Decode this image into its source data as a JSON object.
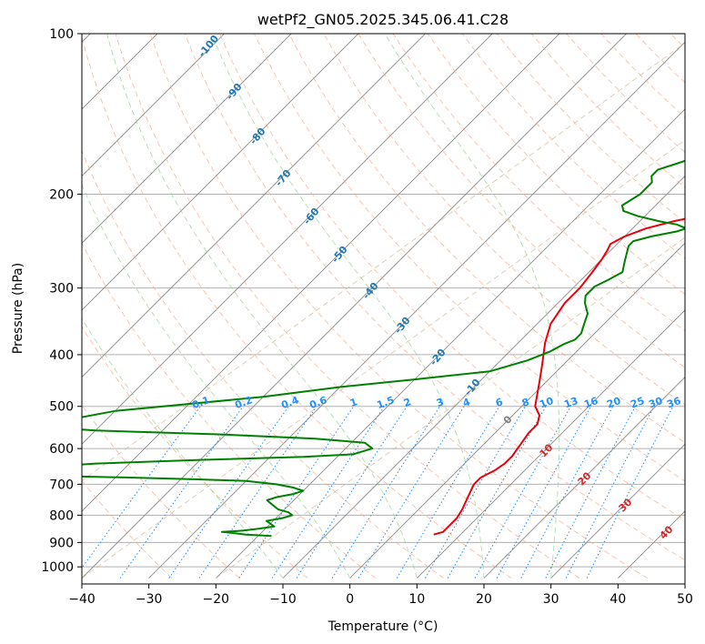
{
  "chart_data": {
    "type": "line",
    "title": "wetPf2_GN05.2025.345.06.41.C28",
    "xlabel": "Temperature (°C)",
    "ylabel": "Pressure (hPa)",
    "xlim": [
      -40,
      50
    ],
    "ylim": [
      1050,
      100
    ],
    "y_scale": "log",
    "grid": true,
    "x_ticks": [
      -40,
      -30,
      -20,
      -10,
      0,
      10,
      20,
      30,
      40,
      50
    ],
    "y_ticks": [
      100,
      200,
      300,
      400,
      500,
      600,
      700,
      800,
      900,
      1000
    ],
    "series": [
      {
        "color": "#e8000b",
        "points": [
          [
            6,
            870
          ],
          [
            7,
            860
          ],
          [
            7,
            840
          ],
          [
            7,
            810
          ],
          [
            6.5,
            780
          ],
          [
            5.5,
            740
          ],
          [
            4.5,
            700
          ],
          [
            4.5,
            680
          ],
          [
            5.5,
            660
          ],
          [
            6,
            640
          ],
          [
            6,
            620
          ],
          [
            5.5,
            590
          ],
          [
            5,
            560
          ],
          [
            5,
            540
          ],
          [
            4,
            520
          ],
          [
            2,
            500
          ],
          [
            -1,
            450
          ],
          [
            -3,
            420
          ],
          [
            -6,
            380
          ],
          [
            -8,
            350
          ],
          [
            -9,
            320
          ],
          [
            -9,
            300
          ],
          [
            -9.5,
            280
          ],
          [
            -10,
            265
          ],
          [
            -10.5,
            255
          ],
          [
            -11,
            248
          ],
          [
            -10,
            240
          ],
          [
            -8,
            232
          ],
          [
            -5,
            225
          ],
          [
            -1,
            218
          ],
          [
            3,
            210
          ],
          [
            8,
            200
          ],
          [
            13,
            190
          ],
          [
            17,
            180
          ],
          [
            21,
            170
          ],
          [
            25,
            160
          ],
          [
            29,
            150
          ],
          [
            35,
            140
          ],
          [
            41,
            130
          ],
          [
            46,
            120
          ],
          [
            50,
            110
          ],
          [
            52,
            105
          ],
          [
            53,
            100
          ]
        ]
      },
      {
        "color": "#008000",
        "points": [
          [
            -18,
            875
          ],
          [
            -22,
            870
          ],
          [
            -25,
            862
          ],
          [
            -26,
            860
          ],
          [
            -24,
            857
          ],
          [
            -23,
            855
          ],
          [
            -21,
            848
          ],
          [
            -19,
            840
          ],
          [
            -20,
            830
          ],
          [
            -21,
            820
          ],
          [
            -19,
            810
          ],
          [
            -18,
            800
          ],
          [
            -19,
            790
          ],
          [
            -21,
            780
          ],
          [
            -23,
            760
          ],
          [
            -24,
            750
          ],
          [
            -23,
            740
          ],
          [
            -21,
            730
          ],
          [
            -20,
            720
          ],
          [
            -22,
            710
          ],
          [
            -25,
            700
          ],
          [
            -30,
            690
          ],
          [
            -38,
            685
          ],
          [
            -48,
            680
          ],
          [
            -60,
            675
          ],
          [
            -70,
            660
          ],
          [
            -55,
            640
          ],
          [
            -40,
            630
          ],
          [
            -25,
            622
          ],
          [
            -18,
            615
          ],
          [
            -16,
            600
          ],
          [
            -18,
            585
          ],
          [
            -26,
            575
          ],
          [
            -40,
            565
          ],
          [
            -60,
            555
          ],
          [
            -70,
            545
          ],
          [
            -60,
            510
          ],
          [
            -40,
            480
          ],
          [
            -30,
            460
          ],
          [
            -20,
            445
          ],
          [
            -10,
            430
          ],
          [
            -6,
            410
          ],
          [
            -4,
            395
          ],
          [
            -3,
            382
          ],
          [
            -2,
            375
          ],
          [
            -2,
            365
          ],
          [
            -3,
            350
          ],
          [
            -4,
            335
          ],
          [
            -6,
            320
          ],
          [
            -7,
            310
          ],
          [
            -7,
            298
          ],
          [
            -6,
            290
          ],
          [
            -5,
            280
          ],
          [
            -6,
            270
          ],
          [
            -7,
            260
          ],
          [
            -8,
            250
          ],
          [
            -8,
            245
          ],
          [
            -6,
            240
          ],
          [
            -3,
            235
          ],
          [
            -2,
            232
          ],
          [
            -4,
            228
          ],
          [
            -7,
            225
          ],
          [
            -11,
            220
          ],
          [
            -14,
            215
          ],
          [
            -15,
            210
          ],
          [
            -14,
            200
          ],
          [
            -14,
            190
          ],
          [
            -15,
            185
          ],
          [
            -15,
            180
          ],
          [
            -13,
            175
          ],
          [
            -11,
            170
          ],
          [
            -10,
            165
          ],
          [
            -10,
            160
          ],
          [
            -9,
            150
          ],
          [
            -7,
            140
          ],
          [
            -4,
            130
          ],
          [
            0,
            120
          ],
          [
            4,
            112
          ],
          [
            7,
            106
          ],
          [
            10,
            100
          ]
        ]
      }
    ],
    "isotherm_labels": [
      "-100",
      "-90",
      "-80",
      "-70",
      "-60",
      "-50",
      "-40",
      "-30",
      "-20",
      "-10",
      "0"
    ],
    "dry_adiabat_labels": [
      "10",
      "20",
      "30",
      "40"
    ],
    "mixing_ratio_labels": [
      "0.1",
      "0.2",
      "0.4",
      "0.6",
      "1",
      "1.5",
      "2",
      "3",
      "4",
      "6",
      "8",
      "10",
      "13",
      "16",
      "20",
      "25",
      "30",
      "36"
    ],
    "colors": {
      "isotherm": "#7f7f7f",
      "dry_adiabat": "#f4a582",
      "moist_adiabat": "#8fce8f",
      "mixing_ratio": "#1e90ff",
      "isohume": "#d2b48c"
    }
  }
}
